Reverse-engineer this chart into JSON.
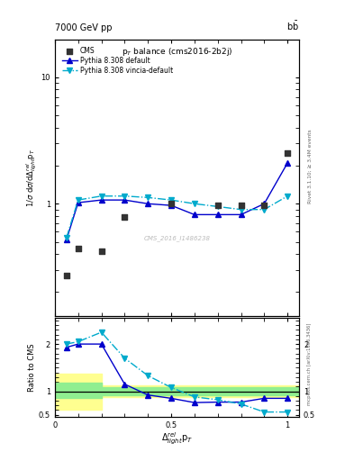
{
  "cms_x": [
    0.05,
    0.1,
    0.2,
    0.3,
    0.5,
    0.7,
    0.8,
    0.9,
    1.0
  ],
  "cms_y": [
    0.27,
    0.44,
    0.42,
    0.78,
    1.0,
    0.97,
    0.97,
    0.97,
    2.5
  ],
  "py_default_x": [
    0.05,
    0.1,
    0.2,
    0.3,
    0.4,
    0.5,
    0.6,
    0.7,
    0.8,
    0.9,
    1.0
  ],
  "py_default_y": [
    0.52,
    1.02,
    1.07,
    1.07,
    1.0,
    0.97,
    0.82,
    0.82,
    0.82,
    1.0,
    2.1
  ],
  "py_vincia_x": [
    0.05,
    0.1,
    0.2,
    0.3,
    0.4,
    0.5,
    0.6,
    0.7,
    0.8,
    0.9,
    1.0
  ],
  "py_vincia_y": [
    0.54,
    1.07,
    1.15,
    1.15,
    1.12,
    1.07,
    1.0,
    0.95,
    0.9,
    0.9,
    1.15
  ],
  "ratio_default_x": [
    0.05,
    0.1,
    0.2,
    0.3,
    0.4,
    0.5,
    0.6,
    0.7,
    0.8,
    0.9,
    1.0
  ],
  "ratio_default_y": [
    1.93,
    2.0,
    2.0,
    1.15,
    0.92,
    0.85,
    0.76,
    0.77,
    0.77,
    0.85,
    0.85
  ],
  "ratio_vincia_x": [
    0.05,
    0.1,
    0.2,
    0.3,
    0.4,
    0.5,
    0.6,
    0.7,
    0.8,
    0.9,
    1.0
  ],
  "ratio_vincia_y": [
    2.0,
    2.05,
    2.25,
    1.7,
    1.33,
    1.08,
    0.88,
    0.82,
    0.73,
    0.56,
    0.56
  ],
  "cms_color": "#333333",
  "default_color": "#0000cc",
  "vincia_color": "#00aacc",
  "green_color": "#90ee90",
  "yellow_color": "#ffff90",
  "ylim_main": [
    0.13,
    20
  ],
  "ylim_ratio": [
    0.45,
    2.55
  ],
  "xlim": [
    0.0,
    1.05
  ]
}
